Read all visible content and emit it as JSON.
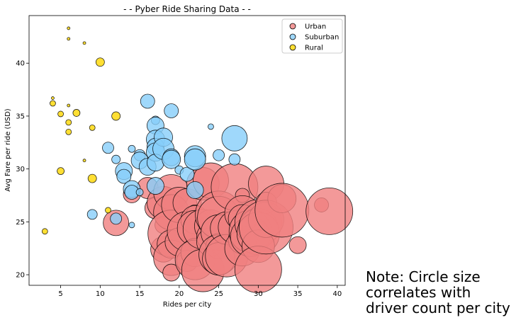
{
  "chart_data": {
    "type": "scatter",
    "title": "- - Pyber Ride Sharing Data - -",
    "xlabel": "Rides per city",
    "ylabel": "Avg Fare per ride (USD)",
    "xlim": [
      1,
      41
    ],
    "ylim": [
      19,
      44.5
    ],
    "xticks": [
      5,
      10,
      15,
      20,
      25,
      30,
      35,
      40
    ],
    "yticks": [
      20,
      25,
      30,
      35,
      40
    ],
    "grid": false,
    "legend_position": "top-right",
    "note": "Note: Circle size correlates with driver count per city",
    "series": [
      {
        "name": "Urban",
        "color": "#f08080",
        "points": [
          {
            "x": 12,
            "y": 24.9,
            "s": 18
          },
          {
            "x": 14,
            "y": 27.6,
            "s": 12
          },
          {
            "x": 16,
            "y": 28.2,
            "s": 15
          },
          {
            "x": 17,
            "y": 26.3,
            "s": 15
          },
          {
            "x": 18,
            "y": 26.8,
            "s": 23
          },
          {
            "x": 18,
            "y": 22.4,
            "s": 18
          },
          {
            "x": 18,
            "y": 24.7,
            "s": 12
          },
          {
            "x": 19,
            "y": 27.8,
            "s": 25
          },
          {
            "x": 19,
            "y": 25.9,
            "s": 25
          },
          {
            "x": 19,
            "y": 23.9,
            "s": 33
          },
          {
            "x": 19,
            "y": 22.9,
            "s": 20
          },
          {
            "x": 19,
            "y": 21.6,
            "s": 25
          },
          {
            "x": 19,
            "y": 20.2,
            "s": 12
          },
          {
            "x": 20,
            "y": 26.6,
            "s": 25
          },
          {
            "x": 20,
            "y": 23.1,
            "s": 20
          },
          {
            "x": 21,
            "y": 26.8,
            "s": 20
          },
          {
            "x": 21,
            "y": 24.1,
            "s": 28
          },
          {
            "x": 21,
            "y": 21.3,
            "s": 15
          },
          {
            "x": 22,
            "y": 25.8,
            "s": 12
          },
          {
            "x": 22,
            "y": 25.2,
            "s": 20
          },
          {
            "x": 22,
            "y": 24.4,
            "s": 25
          },
          {
            "x": 22,
            "y": 22.9,
            "s": 8
          },
          {
            "x": 22,
            "y": 22.1,
            "s": 20
          },
          {
            "x": 22,
            "y": 21.4,
            "s": 28
          },
          {
            "x": 23,
            "y": 28.6,
            "s": 23
          },
          {
            "x": 23,
            "y": 24.3,
            "s": 28
          },
          {
            "x": 23,
            "y": 20.4,
            "s": 30
          },
          {
            "x": 24,
            "y": 28.9,
            "s": 25
          },
          {
            "x": 24,
            "y": 24.6,
            "s": 23
          },
          {
            "x": 24,
            "y": 23.6,
            "s": 20
          },
          {
            "x": 24,
            "y": 23.1,
            "s": 20
          },
          {
            "x": 25,
            "y": 25.7,
            "s": 33
          },
          {
            "x": 25,
            "y": 25.4,
            "s": 30
          },
          {
            "x": 25,
            "y": 24.0,
            "s": 25
          },
          {
            "x": 25,
            "y": 22.7,
            "s": 18
          },
          {
            "x": 25,
            "y": 21.9,
            "s": 28
          },
          {
            "x": 25,
            "y": 21.5,
            "s": 23
          },
          {
            "x": 26,
            "y": 24.4,
            "s": 23
          },
          {
            "x": 26,
            "y": 21.8,
            "s": 30
          },
          {
            "x": 27,
            "y": 28.3,
            "s": 33
          },
          {
            "x": 27,
            "y": 24.5,
            "s": 23
          },
          {
            "x": 28,
            "y": 27.5,
            "s": 10
          },
          {
            "x": 28,
            "y": 25.8,
            "s": 25
          },
          {
            "x": 28,
            "y": 25.3,
            "s": 20
          },
          {
            "x": 28,
            "y": 23.3,
            "s": 20
          },
          {
            "x": 28,
            "y": 22.5,
            "s": 25
          },
          {
            "x": 29,
            "y": 24.1,
            "s": 30
          },
          {
            "x": 29,
            "y": 23.6,
            "s": 28
          },
          {
            "x": 30,
            "y": 24.9,
            "s": 33
          },
          {
            "x": 30,
            "y": 24.4,
            "s": 28
          },
          {
            "x": 30,
            "y": 23.9,
            "s": 30
          },
          {
            "x": 30,
            "y": 22.7,
            "s": 23
          },
          {
            "x": 30,
            "y": 20.5,
            "s": 33
          },
          {
            "x": 31,
            "y": 28.6,
            "s": 25
          },
          {
            "x": 31,
            "y": 26.8,
            "s": 15
          },
          {
            "x": 31,
            "y": 25.2,
            "s": 25
          },
          {
            "x": 31,
            "y": 24.5,
            "s": 38
          },
          {
            "x": 33,
            "y": 27.2,
            "s": 20
          },
          {
            "x": 33,
            "y": 26.1,
            "s": 38
          },
          {
            "x": 35,
            "y": 22.8,
            "s": 12
          },
          {
            "x": 38,
            "y": 26.6,
            "s": 10
          },
          {
            "x": 39,
            "y": 26.0,
            "s": 33
          }
        ]
      },
      {
        "name": "Suburban",
        "color": "#87cefa",
        "points": [
          {
            "x": 9,
            "y": 25.7,
            "s": 7
          },
          {
            "x": 11,
            "y": 32.0,
            "s": 8
          },
          {
            "x": 12,
            "y": 25.3,
            "s": 8
          },
          {
            "x": 12,
            "y": 30.9,
            "s": 6
          },
          {
            "x": 13,
            "y": 29.8,
            "s": 12
          },
          {
            "x": 13,
            "y": 29.3,
            "s": 10
          },
          {
            "x": 14,
            "y": 31.9,
            "s": 5
          },
          {
            "x": 14,
            "y": 28.1,
            "s": 12
          },
          {
            "x": 14,
            "y": 27.8,
            "s": 10
          },
          {
            "x": 14,
            "y": 24.7,
            "s": 4
          },
          {
            "x": 15,
            "y": 31.3,
            "s": 8
          },
          {
            "x": 15,
            "y": 30.8,
            "s": 12
          },
          {
            "x": 15,
            "y": 27.8,
            "s": 5
          },
          {
            "x": 16,
            "y": 36.4,
            "s": 10
          },
          {
            "x": 16,
            "y": 30.2,
            "s": 12
          },
          {
            "x": 17,
            "y": 34.6,
            "s": 6
          },
          {
            "x": 17,
            "y": 34.1,
            "s": 12
          },
          {
            "x": 17,
            "y": 32.8,
            "s": 13
          },
          {
            "x": 17,
            "y": 32.1,
            "s": 12
          },
          {
            "x": 17,
            "y": 31.6,
            "s": 13
          },
          {
            "x": 17,
            "y": 30.6,
            "s": 12
          },
          {
            "x": 17,
            "y": 28.4,
            "s": 12
          },
          {
            "x": 18,
            "y": 33.0,
            "s": 13
          },
          {
            "x": 18,
            "y": 31.9,
            "s": 15
          },
          {
            "x": 19,
            "y": 35.5,
            "s": 10
          },
          {
            "x": 19,
            "y": 31.1,
            "s": 12
          },
          {
            "x": 19,
            "y": 30.9,
            "s": 13
          },
          {
            "x": 20,
            "y": 29.9,
            "s": 6
          },
          {
            "x": 21,
            "y": 29.5,
            "s": 10
          },
          {
            "x": 22,
            "y": 31.2,
            "s": 15
          },
          {
            "x": 22,
            "y": 30.9,
            "s": 15
          },
          {
            "x": 22,
            "y": 28.0,
            "s": 12
          },
          {
            "x": 24,
            "y": 34.0,
            "s": 4
          },
          {
            "x": 25,
            "y": 31.3,
            "s": 8
          },
          {
            "x": 27,
            "y": 32.9,
            "s": 18
          },
          {
            "x": 27,
            "y": 30.9,
            "s": 8
          }
        ]
      },
      {
        "name": "Rural",
        "color": "#ffd700",
        "points": [
          {
            "x": 3,
            "y": 24.1,
            "s": 4
          },
          {
            "x": 4,
            "y": 36.7,
            "s": 2
          },
          {
            "x": 4,
            "y": 36.2,
            "s": 4
          },
          {
            "x": 5,
            "y": 35.2,
            "s": 4
          },
          {
            "x": 5,
            "y": 29.8,
            "s": 5
          },
          {
            "x": 6,
            "y": 43.3,
            "s": 2
          },
          {
            "x": 6,
            "y": 42.3,
            "s": 2
          },
          {
            "x": 6,
            "y": 36.0,
            "s": 2
          },
          {
            "x": 6,
            "y": 34.4,
            "s": 4
          },
          {
            "x": 6,
            "y": 33.5,
            "s": 4
          },
          {
            "x": 7,
            "y": 35.3,
            "s": 5
          },
          {
            "x": 8,
            "y": 41.9,
            "s": 2
          },
          {
            "x": 8,
            "y": 30.8,
            "s": 2
          },
          {
            "x": 9,
            "y": 33.9,
            "s": 4
          },
          {
            "x": 9,
            "y": 29.1,
            "s": 6
          },
          {
            "x": 10,
            "y": 40.1,
            "s": 6
          },
          {
            "x": 11,
            "y": 26.1,
            "s": 4
          },
          {
            "x": 12,
            "y": 35.0,
            "s": 6
          }
        ]
      }
    ]
  }
}
